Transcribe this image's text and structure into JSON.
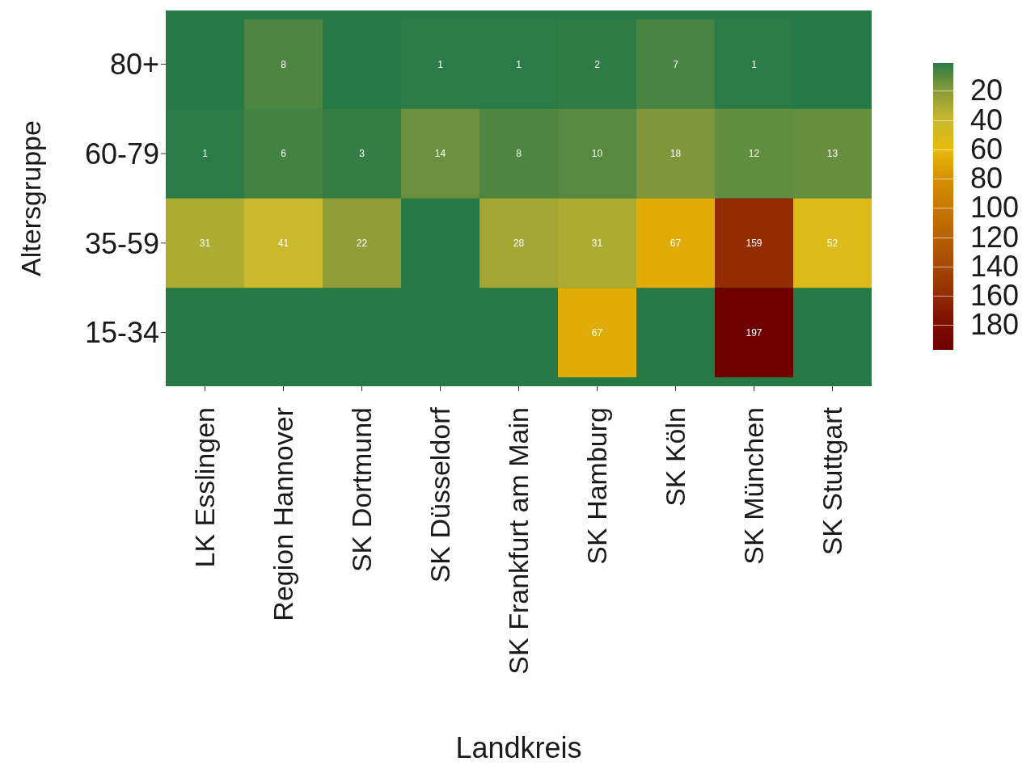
{
  "chart_data": {
    "type": "heatmap",
    "xlabel": "Landkreis",
    "ylabel": "Altersgruppe",
    "categories": [
      "LK Esslingen",
      "Region Hannover",
      "SK Dortmund",
      "SK Düsseldorf",
      "SK Frankfurt am Main",
      "SK Hamburg",
      "SK Köln",
      "SK München",
      "SK Stuttgart"
    ],
    "y_categories": [
      "80+",
      "60-79",
      "35-59",
      "15-34"
    ],
    "cells": [
      [
        null,
        8,
        null,
        1,
        1,
        2,
        7,
        1,
        null
      ],
      [
        1,
        6,
        3,
        14,
        8,
        10,
        18,
        12,
        13
      ],
      [
        31,
        41,
        22,
        null,
        28,
        31,
        67,
        159,
        52
      ],
      [
        null,
        null,
        null,
        null,
        null,
        67,
        null,
        197,
        null
      ]
    ],
    "clim": [
      1,
      197
    ],
    "cticks": [
      20,
      40,
      60,
      80,
      100,
      120,
      140,
      160,
      180
    ],
    "data_labels": true
  }
}
